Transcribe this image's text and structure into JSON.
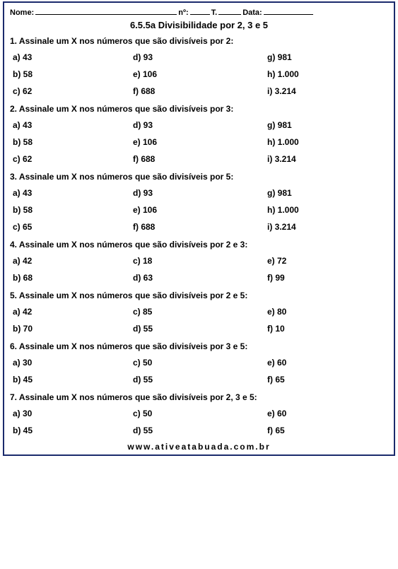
{
  "header": {
    "name_label": "Nome:",
    "num_label": "nº:",
    "t_label": "T.",
    "date_label": "Data:"
  },
  "title": "6.5.5a Divisibilidade por 2, 3 e 5",
  "questions": [
    {
      "prompt": "1. Assinale um X nos números que são divisíveis por 2:",
      "rows": [
        [
          "a) 43",
          "d) 93",
          "g) 981"
        ],
        [
          "b) 58",
          "e) 106",
          "h) 1.000"
        ],
        [
          "c) 62",
          "f) 688",
          "i) 3.214"
        ]
      ]
    },
    {
      "prompt": "2. Assinale um X nos números que são divisíveis por 3:",
      "rows": [
        [
          "a) 43",
          "d) 93",
          "g) 981"
        ],
        [
          "b) 58",
          "e) 106",
          "h) 1.000"
        ],
        [
          "c) 62",
          "f) 688",
          "i) 3.214"
        ]
      ]
    },
    {
      "prompt": "3. Assinale um X nos números que são divisíveis por 5:",
      "rows": [
        [
          "a) 43",
          "d) 93",
          "g) 981"
        ],
        [
          "b) 58",
          "e) 106",
          "h) 1.000"
        ],
        [
          "c) 65",
          "f) 688",
          "i) 3.214"
        ]
      ]
    },
    {
      "prompt": "4. Assinale um X nos números que são divisíveis por 2 e 3:",
      "rows": [
        [
          "a) 42",
          "c) 18",
          "e) 72"
        ],
        [
          "b) 68",
          "d) 63",
          "f) 99"
        ]
      ]
    },
    {
      "prompt": "5. Assinale um X nos números que são divisíveis por 2 e 5:",
      "rows": [
        [
          "a) 42",
          "c) 85",
          "e) 80"
        ],
        [
          "b) 70",
          "d) 55",
          "f) 10"
        ]
      ]
    },
    {
      "prompt": "6. Assinale um X nos números que são divisíveis por 3 e 5:",
      "rows": [
        [
          "a) 30",
          "c) 50",
          "e) 60"
        ],
        [
          "b) 45",
          "d) 55",
          "f) 65"
        ]
      ]
    },
    {
      "prompt": "7. Assinale um X nos números que são divisíveis por 2, 3 e 5:",
      "rows": [
        [
          "a) 30",
          "c) 50",
          "e) 60"
        ],
        [
          "b) 45",
          "d) 55",
          "f) 65"
        ]
      ]
    }
  ],
  "footer": "www.ativeatabuada.com.br"
}
